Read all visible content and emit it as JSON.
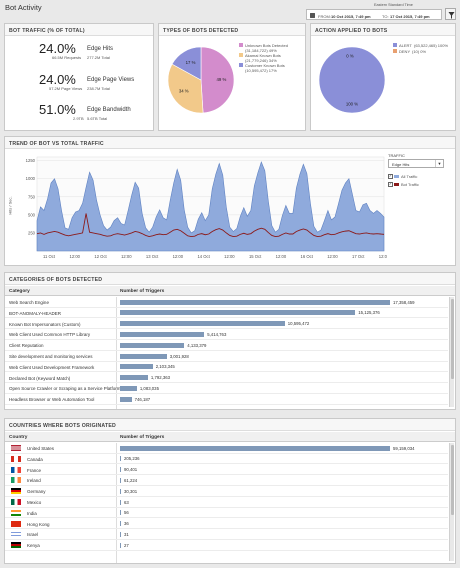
{
  "page": {
    "title": "Bot Activity"
  },
  "timerange": {
    "timezone": "Eastern Standard Time",
    "from_label": "FROM:",
    "from_value": "10 Oct 2015, 7:49 pm",
    "to_label": "TO:",
    "to_value": "17 Oct 2015, 7:49 pm"
  },
  "bot_traffic": {
    "header": "BOT TRAFFIC (% OF TOTAL)",
    "stats": [
      {
        "pct": "24.0%",
        "label": "Edge Hits",
        "sub_left": "66.5M Requests",
        "sub_right": "277.2M Total"
      },
      {
        "pct": "24.0%",
        "label": "Edge Page Views",
        "sub_left": "57.2M Page Views",
        "sub_right": "238.7M Total"
      },
      {
        "pct": "51.0%",
        "label": "Edge Bandwidth",
        "sub_left": "2.9TB",
        "sub_right": "5.6TB Total"
      }
    ]
  },
  "types_of_bots": {
    "header": "TYPES OF BOTS DETECTED",
    "slices": [
      {
        "label": "Unknown Bots Detected",
        "detail": "(31,184,722) 49%",
        "pct_label": "49 %",
        "value": 49,
        "color": "#d38ccc"
      },
      {
        "label": "Akamai Known Bots",
        "detail": "(21,779,246) 34%",
        "pct_label": "34 %",
        "value": 34,
        "color": "#f2c98a"
      },
      {
        "label": "Customer Known Bots",
        "detail": "(10,595,472) 17%",
        "pct_label": "17 %",
        "value": 17,
        "color": "#8a8fd8"
      }
    ]
  },
  "action_applied": {
    "header": "ACTION APPLIED TO BOTS",
    "slices": [
      {
        "label": "ALERT",
        "detail": "(63,522,465) 100%",
        "pct_label": "100 %",
        "value": 100,
        "color": "#8a8fd8"
      },
      {
        "label": "DENY",
        "detail": "(10) 0%",
        "pct_label": "0 %",
        "value": 0,
        "color": "#e8a070"
      }
    ]
  },
  "trend": {
    "header": "TREND OF BOT VS TOTAL TRAFFIC",
    "ylabel": "Hits / Sec.",
    "traffic_label": "TRAFFIC",
    "select_value": "Edge Hits",
    "legend": [
      {
        "label": "All Traffic",
        "color": "#8faadc"
      },
      {
        "label": "Bot Traffic",
        "color": "#8b1a1a"
      }
    ],
    "chart_data": {
      "type": "area",
      "yticks": [
        "1250",
        "1000",
        "750",
        "500",
        "250"
      ],
      "ylim": [
        0,
        1300
      ],
      "xticks": [
        "11 Oct",
        "12:00",
        "12 Oct",
        "12:00",
        "13 Oct",
        "12:00",
        "14 Oct",
        "12:00",
        "15 Oct",
        "12:00",
        "16 Oct",
        "12:00",
        "17 Oct",
        "12:00"
      ],
      "series": [
        {
          "name": "All Traffic",
          "values": [
            420,
            610,
            560,
            720,
            940,
            1000,
            860,
            560,
            320,
            300,
            460,
            540,
            560,
            660,
            880,
            1090,
            980,
            700,
            500,
            350,
            290,
            330,
            420,
            460,
            380,
            360,
            560,
            770,
            950,
            870,
            520,
            320,
            260,
            330,
            470,
            570,
            460,
            430,
            700,
            940,
            1130,
            980,
            570,
            330,
            250,
            280,
            440,
            530,
            420,
            500,
            860,
            1060,
            1210,
            1050,
            610,
            330,
            270,
            310,
            480,
            600,
            480,
            560,
            900,
            1080,
            1230,
            1110,
            690,
            350,
            260,
            300,
            490,
            630,
            520,
            520,
            870,
            1060,
            1200,
            1070,
            660,
            340,
            260,
            290,
            420,
            560,
            430,
            470,
            650,
            840,
            940,
            1000,
            780,
            560,
            540,
            640,
            660,
            560,
            520,
            560,
            520,
            470
          ]
        },
        {
          "name": "Bot Traffic",
          "values": [
            240,
            250,
            230,
            250,
            260,
            270,
            260,
            240,
            220,
            210,
            220,
            230,
            240,
            250,
            520,
            260,
            250,
            240,
            230,
            215,
            205,
            210,
            230,
            240,
            230,
            220,
            235,
            250,
            270,
            260,
            240,
            215,
            200,
            210,
            225,
            235,
            225,
            230,
            260,
            290,
            300,
            280,
            245,
            210,
            200,
            205,
            230,
            240,
            225,
            235,
            270,
            295,
            310,
            290,
            250,
            215,
            200,
            205,
            230,
            245,
            230,
            240,
            275,
            300,
            315,
            300,
            255,
            215,
            200,
            205,
            230,
            250,
            235,
            235,
            270,
            290,
            305,
            290,
            250,
            215,
            200,
            205,
            225,
            240,
            225,
            230,
            250,
            265,
            275,
            280,
            260,
            240,
            235,
            245,
            250,
            240,
            235,
            240,
            235,
            230
          ]
        }
      ]
    }
  },
  "categories": {
    "header": "CATEGORIES OF BOTS DETECTED",
    "col1": "Category",
    "col2": "Number of Triggers",
    "max": 17358459,
    "rows": [
      {
        "label": "Web Search Engine",
        "value": 17358459,
        "text": "17,358,459"
      },
      {
        "label": "BOT-ANOMALY-HEADER",
        "value": 15125376,
        "text": "15,125,376"
      },
      {
        "label": "Known Bot Impersonators (Custom)",
        "value": 10595472,
        "text": "10,595,472"
      },
      {
        "label": "Web Client Used Common HTTP Library",
        "value": 5414763,
        "text": "5,414,763"
      },
      {
        "label": "Client Reputation",
        "value": 4133379,
        "text": "4,133,379"
      },
      {
        "label": "Site development and monitoring services",
        "value": 3001928,
        "text": "3,001,928"
      },
      {
        "label": "Web Client Used Development Framework",
        "value": 2103345,
        "text": "2,103,345"
      },
      {
        "label": "Declared Bot (Keyword Match)",
        "value": 1792363,
        "text": "1,792,363"
      },
      {
        "label": "Open Source Crawler or Scraping as a Service Platform",
        "value": 1083035,
        "text": "1,083,035"
      },
      {
        "label": "Headless Browser or Web Automation Tool",
        "value": 746187,
        "text": "746,187"
      }
    ]
  },
  "countries": {
    "header": "COUNTRIES WHERE BOTS ORIGINATED",
    "col1": "Country",
    "col2": "Number of Triggers",
    "max": 59159034,
    "rows": [
      {
        "label": "United States",
        "value": 59159034,
        "text": "59,159,034",
        "flag": "us"
      },
      {
        "label": "Canada",
        "value": 205236,
        "text": "205,236",
        "flag": "ca"
      },
      {
        "label": "France",
        "value": 90401,
        "text": "90,401",
        "flag": "fr"
      },
      {
        "label": "Ireland",
        "value": 61224,
        "text": "61,224",
        "flag": "ie"
      },
      {
        "label": "Germany",
        "value": 30301,
        "text": "30,301",
        "flag": "de"
      },
      {
        "label": "Mexico",
        "value": 63,
        "text": "63",
        "flag": "mx"
      },
      {
        "label": "India",
        "value": 56,
        "text": "56",
        "flag": "in"
      },
      {
        "label": "Hong Kong",
        "value": 36,
        "text": "36",
        "flag": "hk"
      },
      {
        "label": "Israel",
        "value": 31,
        "text": "31",
        "flag": "il"
      },
      {
        "label": "Kenya",
        "value": 27,
        "text": "27",
        "flag": "ke"
      }
    ]
  }
}
